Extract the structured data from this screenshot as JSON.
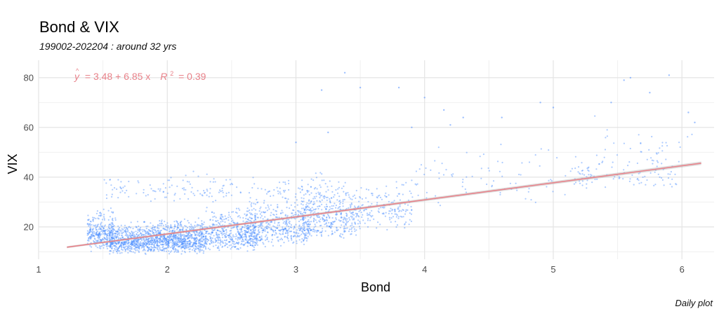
{
  "chart_data": {
    "type": "scatter",
    "title": "Bond & VIX",
    "subtitle": "199002-202204 : around 32 yrs",
    "caption": "Daily plot",
    "xlabel": "Bond",
    "ylabel": "VIX",
    "xlim": [
      1,
      6.25
    ],
    "ylim": [
      7,
      87
    ],
    "xticks": [
      1,
      2,
      3,
      4,
      5,
      6
    ],
    "yticks": [
      20,
      40,
      60,
      80
    ],
    "grid": true,
    "legend": "none",
    "point_color": "#4C8DFF",
    "line_color": "#E8828A",
    "regression": {
      "intercept": 3.48,
      "slope": 6.85,
      "r2": 0.39,
      "x_range": [
        1.22,
        6.15
      ]
    },
    "equation": {
      "yhat": "y",
      "hat": "^",
      "eq": "= 3.48 + 6.85 x",
      "r": "R",
      "sup": "2",
      "req": "= 0.39"
    },
    "clusters": [
      {
        "x": [
          1.38,
          1.58
        ],
        "y": [
          10,
          30
        ],
        "n": 300
      },
      {
        "x": [
          1.55,
          1.95
        ],
        "y": [
          9,
          24
        ],
        "n": 700
      },
      {
        "x": [
          1.95,
          2.3
        ],
        "y": [
          9,
          25
        ],
        "n": 650
      },
      {
        "x": [
          2.3,
          2.7
        ],
        "y": [
          10,
          30
        ],
        "n": 450
      },
      {
        "x": [
          2.6,
          3.1
        ],
        "y": [
          12,
          34
        ],
        "n": 450
      },
      {
        "x": [
          3.05,
          3.5
        ],
        "y": [
          15,
          40
        ],
        "n": 400
      },
      {
        "x": [
          3.5,
          3.9
        ],
        "y": [
          18,
          42
        ],
        "n": 150
      },
      {
        "x": [
          1.5,
          3.4
        ],
        "y": [
          30,
          43
        ],
        "n": 200
      },
      {
        "x": [
          3.9,
          5.1
        ],
        "y": [
          26,
          60
        ],
        "n": 80
      },
      {
        "x": [
          5.1,
          6.0
        ],
        "y": [
          35,
          52
        ],
        "n": 110
      },
      {
        "x": [
          5.3,
          6.15
        ],
        "y": [
          45,
          70
        ],
        "n": 30
      }
    ],
    "outliers": [
      {
        "x": 3.38,
        "y": 82
      },
      {
        "x": 3.5,
        "y": 76
      },
      {
        "x": 3.2,
        "y": 75
      },
      {
        "x": 3.8,
        "y": 76
      },
      {
        "x": 4.0,
        "y": 72
      },
      {
        "x": 4.3,
        "y": 64
      },
      {
        "x": 4.6,
        "y": 64
      },
      {
        "x": 4.9,
        "y": 70
      },
      {
        "x": 5.6,
        "y": 80
      },
      {
        "x": 5.55,
        "y": 79
      },
      {
        "x": 5.9,
        "y": 81
      },
      {
        "x": 5.75,
        "y": 74
      },
      {
        "x": 5.45,
        "y": 70
      },
      {
        "x": 6.05,
        "y": 66
      },
      {
        "x": 6.1,
        "y": 62
      },
      {
        "x": 5.0,
        "y": 68
      },
      {
        "x": 4.2,
        "y": 61
      },
      {
        "x": 4.15,
        "y": 67
      },
      {
        "x": 3.9,
        "y": 60
      },
      {
        "x": 3.0,
        "y": 54
      },
      {
        "x": 3.25,
        "y": 58
      }
    ]
  }
}
